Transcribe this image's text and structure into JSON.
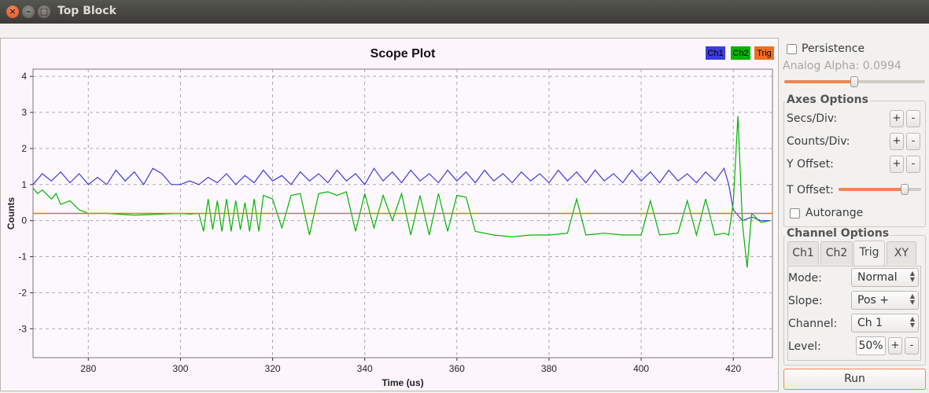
{
  "window": {
    "title": "Top Block",
    "close_glyph": "×",
    "min_glyph": "–",
    "max_glyph": "□"
  },
  "chart_data": {
    "type": "line",
    "title": "Scope Plot",
    "xlabel": "Time (us)",
    "ylabel": "Counts",
    "xlim": [
      268,
      428.5
    ],
    "ylim": [
      -3.8,
      4.2
    ],
    "x_ticks": [
      280,
      300,
      320,
      340,
      360,
      380,
      400,
      420
    ],
    "y_ticks": [
      4,
      3,
      2,
      1,
      0,
      -1,
      -2,
      -3
    ],
    "grid": true,
    "legend_placement": "top-right",
    "legend": [
      {
        "name": "Ch1",
        "color": "#3c3cdc"
      },
      {
        "name": "Ch2",
        "color": "#00b400"
      },
      {
        "name": "Trig",
        "color": "#f06e1e"
      }
    ],
    "trigger_level": 0.2,
    "series": [
      {
        "name": "Ch1",
        "color": "#3c3cdc",
        "x": [
          268,
          270,
          272,
          274,
          276,
          278,
          280,
          282,
          284,
          286,
          288,
          290,
          292,
          294,
          296,
          298,
          300,
          302,
          304,
          306,
          308,
          310,
          312,
          314,
          316,
          318,
          320,
          322,
          324,
          326,
          328,
          330,
          332,
          334,
          336,
          338,
          340,
          342,
          344,
          346,
          348,
          350,
          352,
          354,
          356,
          358,
          360,
          362,
          364,
          366,
          368,
          370,
          372,
          374,
          376,
          378,
          380,
          382,
          384,
          386,
          388,
          390,
          392,
          394,
          396,
          398,
          400,
          402,
          404,
          406,
          408,
          410,
          412,
          414,
          416,
          418,
          419,
          420,
          422,
          424,
          426,
          428
        ],
        "values": [
          1.0,
          1.3,
          1.1,
          1.35,
          1.05,
          1.3,
          1.0,
          1.2,
          1.0,
          1.4,
          1.1,
          1.35,
          1.0,
          1.45,
          1.3,
          1.0,
          1.0,
          1.1,
          1.0,
          1.2,
          1.05,
          1.3,
          1.0,
          1.25,
          1.05,
          1.4,
          1.1,
          1.25,
          1.0,
          1.35,
          1.1,
          1.3,
          1.05,
          1.4,
          1.1,
          1.3,
          1.0,
          1.45,
          1.1,
          1.35,
          1.05,
          1.4,
          1.1,
          1.3,
          1.05,
          1.4,
          1.1,
          1.35,
          1.05,
          1.4,
          1.1,
          1.3,
          1.05,
          1.35,
          1.1,
          1.3,
          1.05,
          1.4,
          1.1,
          1.35,
          1.05,
          1.4,
          1.1,
          1.3,
          1.05,
          1.4,
          1.1,
          1.35,
          1.05,
          1.4,
          1.1,
          1.3,
          1.05,
          1.35,
          1.1,
          1.45,
          1.0,
          0.3,
          0.0,
          0.1,
          0.0,
          0.0
        ]
      },
      {
        "name": "Ch2",
        "color": "#00b400",
        "x": [
          268,
          269,
          270,
          272,
          273,
          274,
          276,
          278,
          280,
          284,
          290,
          296,
          300,
          302,
          304,
          305,
          306,
          307,
          308,
          309,
          310,
          311,
          312,
          313,
          314,
          315,
          316,
          317,
          318,
          320,
          322,
          324,
          326,
          328,
          330,
          332,
          334,
          336,
          338,
          340,
          342,
          344,
          346,
          348,
          350,
          352,
          354,
          356,
          358,
          360,
          362,
          364,
          366,
          368,
          372,
          376,
          380,
          384,
          386,
          388,
          392,
          396,
          400,
          402,
          404,
          408,
          410,
          412,
          414,
          416,
          418,
          419,
          420,
          421,
          422,
          423,
          424,
          426,
          428
        ],
        "values": [
          0.9,
          0.75,
          0.85,
          0.6,
          0.75,
          0.45,
          0.55,
          0.3,
          0.2,
          0.2,
          0.15,
          0.18,
          0.2,
          0.18,
          0.2,
          -0.3,
          0.6,
          -0.25,
          0.55,
          -0.3,
          0.6,
          -0.3,
          0.55,
          -0.25,
          0.5,
          -0.3,
          0.6,
          -0.3,
          0.7,
          0.6,
          -0.2,
          0.7,
          0.75,
          -0.4,
          0.75,
          0.8,
          0.7,
          0.8,
          -0.3,
          0.75,
          -0.2,
          0.7,
          0.0,
          0.75,
          -0.4,
          0.7,
          -0.4,
          0.75,
          -0.3,
          0.7,
          0.65,
          -0.3,
          -0.35,
          -0.4,
          -0.45,
          -0.4,
          -0.4,
          -0.35,
          0.6,
          -0.4,
          -0.35,
          -0.4,
          -0.4,
          0.55,
          -0.4,
          -0.35,
          0.55,
          -0.4,
          0.6,
          -0.4,
          -0.35,
          -0.4,
          0.5,
          2.9,
          -0.1,
          -1.3,
          0.2,
          -0.05,
          0.0
        ]
      }
    ]
  },
  "panel": {
    "persistence_label": "Persistence",
    "persistence_checked": false,
    "analog_alpha_label": "Analog Alpha: 0.0994",
    "analog_alpha_value": 0.0994,
    "axes_title": "Axes Options",
    "secs_div_label": "Secs/Div:",
    "counts_div_label": "Counts/Div:",
    "y_offset_label": "Y Offset:",
    "t_offset_label": "T Offset:",
    "t_offset_level": 0.8,
    "autorange_label": "Autorange",
    "autorange_checked": false,
    "plus": "+",
    "minus": "-",
    "channel_title": "Channel Options",
    "tabs": [
      "Ch1",
      "Ch2",
      "Trig",
      "XY"
    ],
    "active_tab": "Trig",
    "mode_label": "Mode:",
    "mode_value": "Normal",
    "slope_label": "Slope:",
    "slope_value": "Pos +",
    "channel_label": "Channel:",
    "channel_value": "Ch 1",
    "level_label": "Level:",
    "level_value": "50%",
    "run_label": "Run"
  }
}
